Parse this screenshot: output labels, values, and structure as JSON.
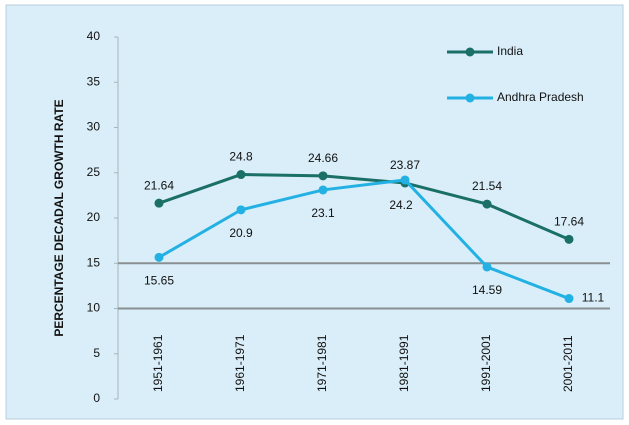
{
  "chart_data": {
    "type": "line",
    "y_label": "PERCENTAGE DECADAL GROWTH RATE",
    "categories": [
      "1951-1961",
      "1961-1971",
      "1971-1981",
      "1981-1991",
      "1991-2001",
      "2001-2011"
    ],
    "series": [
      {
        "name": "India",
        "color": "#1a6f67",
        "values": [
          21.64,
          24.8,
          24.66,
          23.87,
          21.54,
          17.64
        ]
      },
      {
        "name": "Andhra Pradesh",
        "color": "#23b1e4",
        "values": [
          15.65,
          20.9,
          23.1,
          24.2,
          14.59,
          11.1
        ]
      }
    ],
    "ylim": [
      0,
      40
    ],
    "yticks": [
      0,
      5,
      10,
      15,
      20,
      25,
      30,
      35,
      40
    ],
    "hlines": [
      10,
      15
    ],
    "legend": "top-right"
  }
}
